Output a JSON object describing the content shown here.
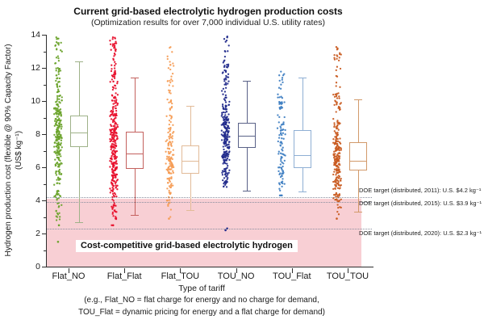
{
  "title": "Current grid-based electrolytic hydrogen production costs",
  "subtitle": "(Optimization results for over 7,000 individual U.S. utility rates)",
  "y_axis": {
    "label_line1": "Hydrogen production cost (flexible @ 90% Capacity Factor)",
    "label_line2": "(US$ kg⁻¹)",
    "min": 0,
    "max": 14,
    "major_tick_step": 2,
    "minor_tick_step": 1,
    "ticks": [
      0,
      2,
      4,
      6,
      8,
      10,
      12,
      14
    ]
  },
  "x_axis": {
    "label": "Type of tariff",
    "categories": [
      "Flat_NO",
      "Flat_Flat",
      "Flat_TOU",
      "TOU_NO",
      "TOU_Flat",
      "TOU_TOU"
    ]
  },
  "footnote_line1": "(e.g., Flat_NO = flat charge for energy and no charge for demand,",
  "footnote_line2": "TOU_Flat = dynamic pricing for energy and a flat charge for demand)",
  "competitive_label": "Cost-competitive grid-based electrolytic hydrogen",
  "competitive_region": {
    "from": 0,
    "to": 4.1,
    "color": "#f8cfd4"
  },
  "doe_targets": [
    {
      "value": 4.2,
      "label": "DOE target (distributed, 2011): U.S. $4.2 kg⁻¹"
    },
    {
      "value": 3.9,
      "label": "DOE target (distributed, 2015): U.S. $3.9 kg⁻¹"
    },
    {
      "value": 2.3,
      "label": "DOE target (distributed, 2020): U.S. $2.3 kg⁻¹"
    }
  ],
  "chart_data": {
    "type": "boxplot_scatter",
    "title": "Current grid-based electrolytic hydrogen production costs",
    "ylabel": "Hydrogen production cost (flexible @ 90% Capacity Factor) (US$ kg⁻¹)",
    "xlabel": "Type of tariff",
    "ylim": [
      0,
      14
    ],
    "categories": [
      "Flat_NO",
      "Flat_Flat",
      "Flat_TOU",
      "TOU_NO",
      "TOU_Flat",
      "TOU_TOU"
    ],
    "series": [
      {
        "name": "Flat_NO",
        "scatter_color": "#6ba32c",
        "box_color": "#9fb289",
        "whisker_low": 2.7,
        "q1": 7.2,
        "median": 8.1,
        "q3": 9.1,
        "whisker_high": 12.4,
        "scatter_min": 2.4,
        "scatter_max": 13.85,
        "outliers": [
          1.5,
          2.5
        ],
        "point_count": 300
      },
      {
        "name": "Flat_Flat",
        "scatter_color": "#e8112d",
        "box_color": "#c4615e",
        "whisker_low": 3.1,
        "q1": 5.9,
        "median": 6.85,
        "q3": 8.15,
        "whisker_high": 11.4,
        "scatter_min": 2.5,
        "scatter_max": 13.85,
        "outliers": [
          2.5
        ],
        "point_count": 330
      },
      {
        "name": "Flat_TOU",
        "scatter_color": "#f59d56",
        "box_color": "#e2bb98",
        "whisker_low": 3.4,
        "q1": 5.6,
        "median": 6.4,
        "q3": 7.3,
        "whisker_high": 9.7,
        "scatter_min": 3.0,
        "scatter_max": 13.9,
        "outliers": [
          2.9
        ],
        "point_count": 175
      },
      {
        "name": "TOU_NO",
        "scatter_color": "#232c8c",
        "box_color": "#5a6288",
        "whisker_low": 4.6,
        "q1": 7.15,
        "median": 7.9,
        "q3": 8.7,
        "whisker_high": 11.2,
        "scatter_min": 4.3,
        "scatter_max": 13.9,
        "outliers": [
          2.2,
          2.3
        ],
        "point_count": 280
      },
      {
        "name": "TOU_Flat",
        "scatter_color": "#4181c3",
        "box_color": "#8fafd4",
        "whisker_low": 4.55,
        "q1": 5.95,
        "median": 6.75,
        "q3": 8.25,
        "whisker_high": 11.4,
        "scatter_min": 4.3,
        "scatter_max": 11.9,
        "outliers": [],
        "point_count": 125
      },
      {
        "name": "TOU_TOU",
        "scatter_color": "#c95c22",
        "box_color": "#d29a6b",
        "whisker_low": 3.3,
        "q1": 5.8,
        "median": 6.4,
        "q3": 7.5,
        "whisker_high": 10.1,
        "scatter_min": 2.9,
        "scatter_max": 13.3,
        "outliers": [
          2.9
        ],
        "point_count": 260
      }
    ],
    "reference_lines": [
      {
        "value": 4.2,
        "label": "DOE target (distributed, 2011): U.S. $4.2 kg⁻¹"
      },
      {
        "value": 3.9,
        "label": "DOE target (distributed, 2015): U.S. $3.9 kg⁻¹"
      },
      {
        "value": 2.3,
        "label": "DOE target (distributed, 2020): U.S. $2.3 kg⁻¹"
      }
    ],
    "shaded_region": {
      "from": 0,
      "to": 4.1,
      "label": "Cost-competitive grid-based electrolytic hydrogen",
      "color": "#f8cfd4"
    }
  }
}
